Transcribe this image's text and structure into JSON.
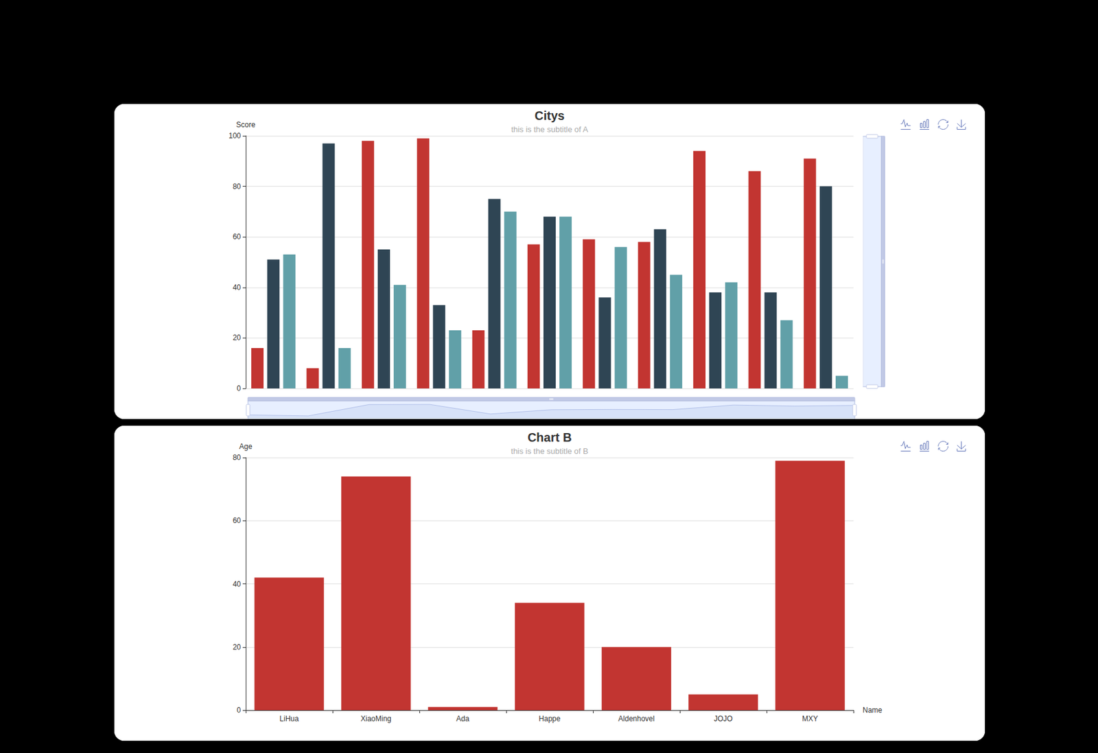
{
  "chart_data": [
    {
      "type": "bar",
      "title": "Citys",
      "subtitle": "this is the subtitle of A",
      "y_label": "Score",
      "categories": [
        null,
        null,
        null,
        null,
        null,
        null,
        null,
        null,
        null,
        null,
        null
      ],
      "series": [
        {
          "color": "#c23531",
          "values": [
            16,
            8,
            98,
            99,
            23,
            57,
            59,
            58,
            94,
            86,
            91
          ]
        },
        {
          "color": "#2f4554",
          "values": [
            51,
            97,
            55,
            33,
            75,
            68,
            36,
            63,
            38,
            38,
            80
          ]
        },
        {
          "color": "#61a0a8",
          "values": [
            53,
            16,
            41,
            23,
            70,
            68,
            56,
            45,
            42,
            27,
            5
          ]
        }
      ],
      "ylim": [
        0,
        100
      ],
      "yticks": [
        0,
        20,
        40,
        60,
        80,
        100
      ],
      "grid": true,
      "tick_labels": "y"
    },
    {
      "type": "bar",
      "title": "Chart B",
      "subtitle": "this is the subtitle of B",
      "x_label": "Name",
      "y_label": "Age",
      "categories": [
        "LiHua",
        "XiaoMing",
        "Ada",
        "Happe",
        "Aldenhovel",
        "JOJO",
        "MXY"
      ],
      "values": [
        42,
        74,
        1,
        34,
        20,
        5,
        79
      ],
      "color": "#c23531",
      "ylim": [
        0,
        80
      ],
      "yticks": [
        0,
        20,
        40,
        60,
        80
      ],
      "grid": true
    }
  ]
}
